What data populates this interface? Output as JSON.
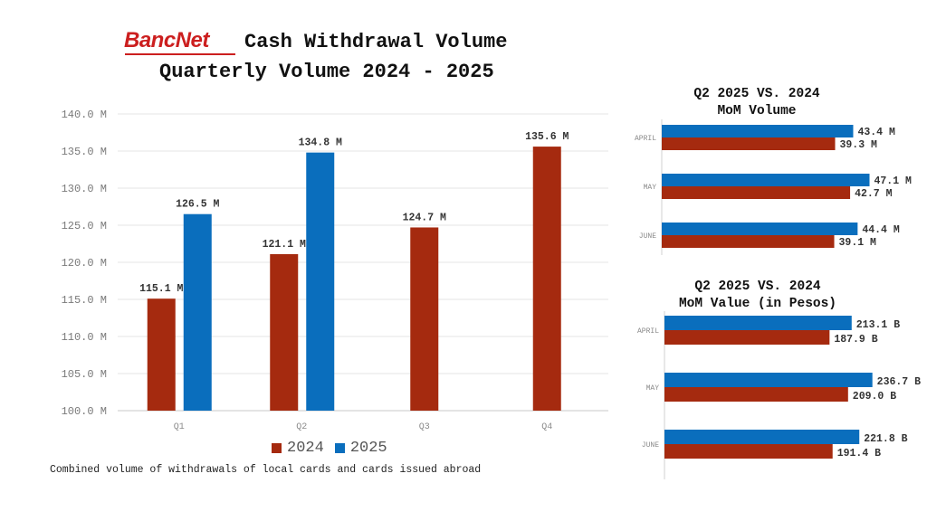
{
  "header": {
    "logo": "BancNet",
    "title_line1": "Cash Withdrawal Volume",
    "title_line2": "Quarterly Volume 2024 - 2025"
  },
  "caption": "Combined volume of withdrawals of local cards and cards issued abroad",
  "colors": {
    "series_2024": "#a52a0f",
    "series_2025": "#0a6ebd"
  },
  "legend": [
    {
      "label": "2024",
      "color": "#a52a0f"
    },
    {
      "label": "2025",
      "color": "#0a6ebd"
    }
  ],
  "side_top": {
    "title_line1": "Q2 2025 VS. 2024",
    "title_line2": "MoM Volume"
  },
  "side_bottom": {
    "title_line1": "Q2 2025 VS. 2024",
    "title_line2": "MoM Value (in Pesos)"
  },
  "chart_data": [
    {
      "type": "bar",
      "title": "Quarterly Volume 2024 - 2025",
      "categories": [
        "Q1",
        "Q2",
        "Q3",
        "Q4"
      ],
      "series": [
        {
          "name": "2024",
          "values": [
            115.1,
            121.1,
            124.7,
            135.6
          ],
          "labels": [
            "115.1 M",
            "121.1 M",
            "124.7 M",
            "135.6 M"
          ]
        },
        {
          "name": "2025",
          "values": [
            126.5,
            134.8,
            null,
            null
          ],
          "labels": [
            "126.5 M",
            "134.8 M",
            "",
            ""
          ]
        }
      ],
      "ylim": [
        100,
        140
      ],
      "yticks": [
        "100.0 M",
        "105.0 M",
        "110.0 M",
        "115.0 M",
        "120.0 M",
        "125.0 M",
        "130.0 M",
        "135.0 M",
        "140.0 M"
      ],
      "grid": true,
      "legend_position": "bottom"
    },
    {
      "type": "bar",
      "orientation": "horizontal",
      "title": "Q2 2025 VS. 2024 MoM Volume",
      "categories": [
        "APRIL",
        "MAY",
        "JUNE"
      ],
      "series": [
        {
          "name": "2025",
          "values": [
            43.4,
            47.1,
            44.4
          ],
          "labels": [
            "43.4 M",
            "47.1 M",
            "44.4 M"
          ]
        },
        {
          "name": "2024",
          "values": [
            39.3,
            42.7,
            39.1
          ],
          "labels": [
            "39.3 M",
            "42.7 M",
            "39.1 M"
          ]
        }
      ],
      "xlim": [
        0,
        55
      ]
    },
    {
      "type": "bar",
      "orientation": "horizontal",
      "title": "Q2 2025 VS. 2024 MoM Value (in Pesos)",
      "categories": [
        "APRIL",
        "MAY",
        "JUNE"
      ],
      "series": [
        {
          "name": "2025",
          "values": [
            213.1,
            236.7,
            221.8
          ],
          "labels": [
            "213.1 B",
            "236.7 B",
            "221.8 B"
          ]
        },
        {
          "name": "2024",
          "values": [
            187.9,
            209.0,
            191.4
          ],
          "labels": [
            "187.9 B",
            "209.0 B",
            "191.4 B"
          ]
        }
      ],
      "xlim": [
        0,
        270
      ]
    }
  ]
}
